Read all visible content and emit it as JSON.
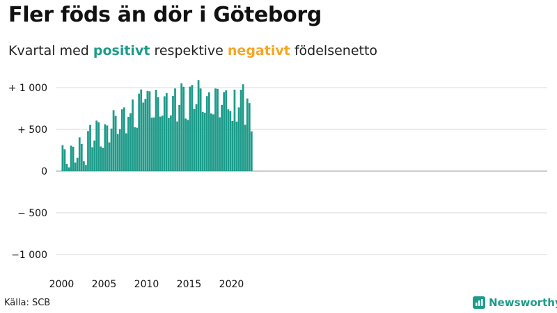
{
  "title": "Fler föds än dör i Göteborg",
  "subtitle": {
    "prefix": "Kvartal med ",
    "positive_word": "positivt",
    "middle": " respektive ",
    "negative_word": "negativt",
    "suffix": " födelsenetto"
  },
  "colors": {
    "positive": "#1e9b8a",
    "negative": "#f5a623",
    "grid": "#d9d9d9",
    "text": "#111111"
  },
  "source": "Källa: SCB",
  "brand": {
    "name": "Newsworthy",
    "icon": "bar-chart-logo-icon"
  },
  "chart_data": {
    "type": "bar",
    "title": "Fler föds än dör i Göteborg",
    "subtitle": "Kvartal med positivt respektive negativt födelsenetto",
    "xlabel": "",
    "ylabel": "",
    "ylim": [
      -1150,
      1100
    ],
    "yticks": [
      {
        "value": 1000,
        "label": "+ 1 000"
      },
      {
        "value": 500,
        "label": "+   500"
      },
      {
        "value": 0,
        "label": "0"
      },
      {
        "value": -500,
        "label": "− 500"
      },
      {
        "value": -1000,
        "label": "−1 000"
      }
    ],
    "xticks": [
      "2000",
      "2005",
      "2010",
      "2015",
      "2020"
    ],
    "grid": true,
    "legend": "none",
    "start_year": 2000,
    "series": [
      {
        "values": [
          310,
          262,
          85,
          45,
          305,
          292,
          103,
          160,
          405,
          325,
          118,
          73,
          480,
          553,
          286,
          366,
          605,
          585,
          295,
          278,
          562,
          546,
          344,
          510,
          730,
          662,
          445,
          504,
          740,
          763,
          453,
          650,
          693,
          858,
          525,
          520,
          928,
          978,
          821,
          865,
          960,
          956,
          640,
          643,
          975,
          886,
          653,
          664,
          896,
          935,
          635,
          668,
          900,
          990,
          595,
          792,
          1052,
          1010,
          630,
          613,
          1012,
          1032,
          743,
          802,
          1090,
          990,
          710,
          700,
          898,
          945,
          690,
          680,
          990,
          985,
          645,
          793,
          947,
          968,
          740,
          720,
          600,
          976,
          593,
          763,
          975,
          1040,
          555,
          870,
          815,
          475
        ]
      }
    ]
  }
}
